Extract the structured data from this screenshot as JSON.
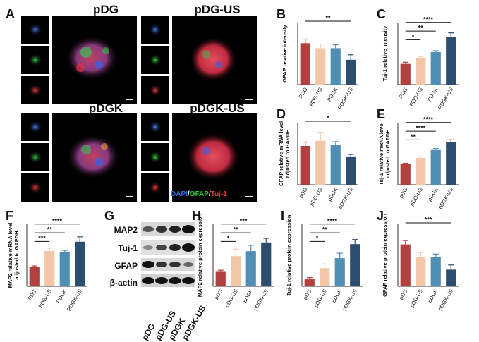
{
  "panel_letters": {
    "A": "A",
    "B": "B",
    "C": "C",
    "D": "D",
    "E": "E",
    "F": "F",
    "G": "G",
    "H": "H",
    "I": "I",
    "J": "J"
  },
  "image_titles": {
    "pdg": "pDG",
    "pdg_us": "pDG-US",
    "pdgk": "pDGK",
    "pdgk_us": "pDGK-US"
  },
  "legend": {
    "dapi": "DAPI",
    "slash1": "/",
    "gfap": "GFAP",
    "slash2": "/",
    "tuj": "Tuj-1"
  },
  "colors": {
    "bar1": "#b0413e",
    "bar2": "#f2c7a8",
    "bar3": "#4f8fb5",
    "bar4": "#2b4d6e",
    "dapi": "#2b6fd6",
    "gfap": "#27c23a",
    "tuj": "#e03030"
  },
  "blot": {
    "rows": [
      "MAP2",
      "Tuj-1",
      "GFAP",
      "β-actin"
    ],
    "columns": [
      "pDG",
      "pDG-US",
      "pDGK",
      "pDGK-US"
    ]
  },
  "chart_data": [
    {
      "id": "B",
      "type": "bar",
      "categories": [
        "PDG",
        "PDG-US",
        "PDGK",
        "PDGK-US"
      ],
      "values": [
        1.0,
        0.88,
        0.88,
        0.6
      ],
      "errors": [
        0.1,
        0.1,
        0.08,
        0.12
      ],
      "ylabel": "GFAP relative intensity",
      "ylim": [
        0,
        1.5
      ],
      "significance": [
        {
          "from": 0,
          "to": 3,
          "label": "**"
        }
      ]
    },
    {
      "id": "C",
      "type": "bar",
      "categories": [
        "PDG",
        "PDG-US",
        "PDGK",
        "PDGK-US"
      ],
      "values": [
        1.0,
        1.3,
        1.57,
        2.3
      ],
      "errors": [
        0.08,
        0.06,
        0.07,
        0.2
      ],
      "ylabel": "Tuj-1 relative intensity",
      "ylim": [
        0,
        3.0
      ],
      "significance": [
        {
          "from": 0,
          "to": 1,
          "label": "*"
        },
        {
          "from": 0,
          "to": 2,
          "label": "**"
        },
        {
          "from": 0,
          "to": 3,
          "label": "****"
        }
      ]
    },
    {
      "id": "D",
      "type": "bar",
      "categories": [
        "pDG",
        "pDG-US",
        "pDGK",
        "pDGK-US"
      ],
      "values": [
        1.0,
        1.13,
        1.03,
        0.73
      ],
      "errors": [
        0.1,
        0.22,
        0.08,
        0.05
      ],
      "ylabel": "GFAP relative mRNA level adjusted to GAPDH",
      "ylim": [
        0,
        1.6
      ],
      "significance": [
        {
          "from": 0,
          "to": 3,
          "label": "*"
        }
      ]
    },
    {
      "id": "E",
      "type": "bar",
      "categories": [
        "pDG",
        "pDG-US",
        "pDGK",
        "pDGK-US"
      ],
      "values": [
        1.0,
        1.3,
        1.68,
        2.07
      ],
      "errors": [
        0.04,
        0.05,
        0.07,
        0.1
      ],
      "ylabel": "Tuj-1 relative mRNA level adjusted to GAPDH",
      "ylim": [
        0,
        3.0
      ],
      "significance": [
        {
          "from": 0,
          "to": 1,
          "label": "**"
        },
        {
          "from": 0,
          "to": 2,
          "label": "****"
        },
        {
          "from": 0,
          "to": 3,
          "label": "****"
        }
      ]
    },
    {
      "id": "F",
      "type": "bar",
      "categories": [
        "PDG",
        "PDG-US",
        "PDGK",
        "PDGK-US"
      ],
      "values": [
        1.0,
        1.82,
        1.75,
        2.3
      ],
      "errors": [
        0.05,
        0.15,
        0.1,
        0.25
      ],
      "ylabel": "MAP2 relative mRNA level adjusted to GAPDH",
      "ylim": [
        0,
        3.2
      ],
      "significance": [
        {
          "from": 0,
          "to": 1,
          "label": "***"
        },
        {
          "from": 0,
          "to": 2,
          "label": "**"
        },
        {
          "from": 0,
          "to": 3,
          "label": "****"
        }
      ]
    },
    {
      "id": "H",
      "type": "bar",
      "categories": [
        "pDG",
        "pDG-US",
        "pDGK",
        "pDGK-US"
      ],
      "values": [
        0.35,
        0.73,
        0.85,
        1.06
      ],
      "errors": [
        0.04,
        0.17,
        0.14,
        0.1
      ],
      "ylabel": "MAP2 relative protein expression",
      "ylim": [
        0,
        1.5
      ],
      "significance": [
        {
          "from": 0,
          "to": 1,
          "label": "*"
        },
        {
          "from": 0,
          "to": 2,
          "label": "**"
        },
        {
          "from": 0,
          "to": 3,
          "label": "***"
        }
      ]
    },
    {
      "id": "I",
      "type": "bar",
      "categories": [
        "pDG",
        "pDG-US",
        "pDGK",
        "pDGK-US"
      ],
      "values": [
        0.17,
        0.44,
        0.68,
        1.02
      ],
      "errors": [
        0.04,
        0.1,
        0.12,
        0.11
      ],
      "ylabel": "Tuj-1 relative protein expression",
      "ylim": [
        0,
        1.5
      ],
      "significance": [
        {
          "from": 0,
          "to": 1,
          "label": "*"
        },
        {
          "from": 0,
          "to": 2,
          "label": "**"
        },
        {
          "from": 0,
          "to": 3,
          "label": "****"
        }
      ]
    },
    {
      "id": "J",
      "type": "bar",
      "categories": [
        "pDG",
        "pDG-US",
        "pDGK",
        "pDGK-US"
      ],
      "values": [
        1.08,
        0.75,
        0.76,
        0.43
      ],
      "errors": [
        0.1,
        0.12,
        0.07,
        0.12
      ],
      "ylabel": "GFAP relative protein expression",
      "ylim": [
        0,
        1.6
      ],
      "significance": [
        {
          "from": 0,
          "to": 3,
          "label": "***"
        }
      ]
    }
  ]
}
